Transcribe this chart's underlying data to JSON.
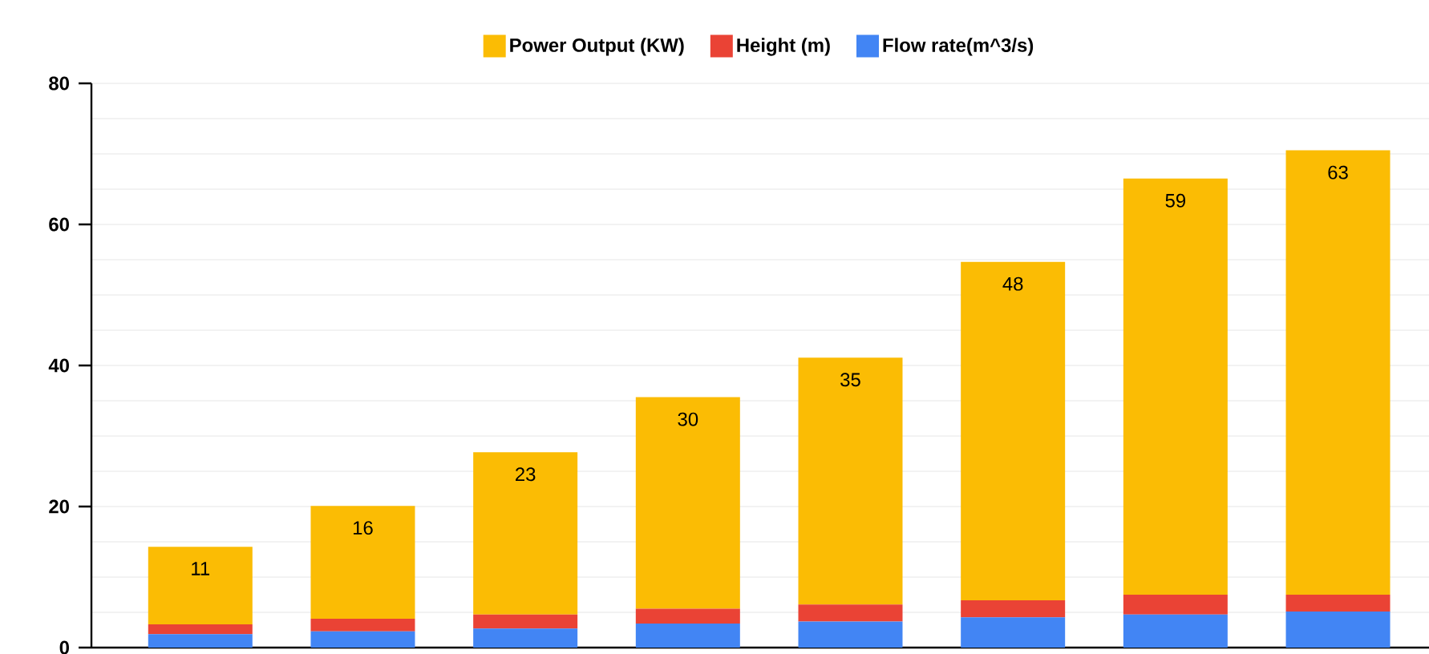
{
  "chart_data": {
    "type": "bar",
    "stacked": true,
    "categories": [
      null,
      null,
      null,
      null,
      null,
      null,
      null,
      null
    ],
    "series": [
      {
        "name": "Flow rate(m^3/s)",
        "color": "#4285f4",
        "values": [
          1.9,
          2.3,
          2.7,
          3.4,
          3.7,
          4.3,
          4.7,
          5.1
        ]
      },
      {
        "name": "Height (m)",
        "color": "#ea4335",
        "values": [
          1.4,
          1.8,
          2.0,
          2.1,
          2.4,
          2.4,
          2.8,
          2.4
        ]
      },
      {
        "name": "Power Output (KW)",
        "color": "#fbbc04",
        "values": [
          11,
          16,
          23,
          30,
          35,
          48,
          59,
          63
        ],
        "value_labels": [
          "11",
          "16",
          "23",
          "30",
          "35",
          "48",
          "59",
          "63"
        ]
      }
    ],
    "ylim": [
      0,
      80
    ],
    "yticks": [
      0,
      {
        "value": 5,
        "label": null
      },
      {
        "value": 10,
        "label": null
      },
      {
        "value": 15,
        "label": null
      },
      20,
      {
        "value": 25,
        "label": null
      },
      {
        "value": 30,
        "label": null
      },
      {
        "value": 35,
        "label": null
      },
      40,
      {
        "value": 45,
        "label": null
      },
      {
        "value": 50,
        "label": null
      },
      {
        "value": 55,
        "label": null
      },
      60,
      {
        "value": 65,
        "label": null
      },
      {
        "value": 70,
        "label": null
      },
      {
        "value": 75,
        "label": null
      },
      80
    ],
    "grid": "y",
    "legend": "top",
    "tick_labels": "y"
  }
}
